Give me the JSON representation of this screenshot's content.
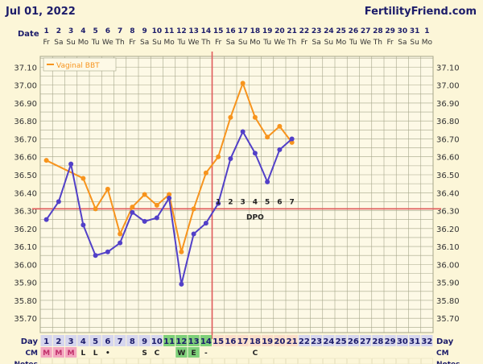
{
  "header": {
    "date": "Jul 01, 2022",
    "brand": "FertilityFriend.com"
  },
  "row_labels": {
    "date": "Date",
    "day": "Day",
    "cm": "CM",
    "notes": "Notes"
  },
  "dpo_label": "DPO",
  "colors": {
    "background": "#fcf6d8",
    "grid": "#a6a68a",
    "bbt_line": "#f7941d",
    "second_line": "#5240c8",
    "coverline": "#e05a5a",
    "ovulation_line": "#e05a5a",
    "text": "#1c1c6a",
    "period_cell": "#f4a7c0",
    "fertile_cell": "#7fd07a",
    "luteal_cell": "#f9dcc8",
    "day_cell": "#d6d6ee"
  },
  "chart_data": {
    "type": "line",
    "title": "",
    "legend": {
      "entries": [
        "Vaginal BBT"
      ],
      "placement": "top-left"
    },
    "dates": [
      "1",
      "2",
      "3",
      "4",
      "5",
      "6",
      "7",
      "8",
      "9",
      "10",
      "11",
      "12",
      "13",
      "14",
      "15",
      "16",
      "17",
      "18",
      "19",
      "20",
      "21",
      "22",
      "23",
      "24",
      "25",
      "26",
      "27",
      "28",
      "29",
      "30",
      "31",
      "1"
    ],
    "weekdays": [
      "Fr",
      "Sa",
      "Su",
      "Mo",
      "Tu",
      "We",
      "Th",
      "Fr",
      "Sa",
      "Su",
      "Mo",
      "Tu",
      "We",
      "Th",
      "Fr",
      "Sa",
      "Su",
      "Mo",
      "Tu",
      "We",
      "Th",
      "Fr",
      "Sa",
      "Su",
      "Mo",
      "Tu",
      "We",
      "Th",
      "Fr",
      "Sa",
      "Su",
      "Mo"
    ],
    "days": [
      "1",
      "2",
      "3",
      "4",
      "5",
      "6",
      "7",
      "8",
      "9",
      "10",
      "11",
      "12",
      "13",
      "14",
      "15",
      "16",
      "17",
      "18",
      "19",
      "20",
      "21",
      "22",
      "23",
      "24",
      "25",
      "26",
      "27",
      "28",
      "29",
      "30",
      "31",
      "32"
    ],
    "cm": [
      "M",
      "M",
      "M",
      "L",
      "L",
      "•",
      "",
      "",
      "S",
      "C",
      "",
      "W",
      "E",
      "-",
      "",
      "",
      "",
      "C",
      "",
      "",
      "",
      "",
      "",
      "",
      "",
      "",
      "",
      "",
      "",
      "",
      "",
      ""
    ],
    "y_ticks": [
      "37.10",
      "37.00",
      "36.90",
      "36.80",
      "36.70",
      "36.60",
      "36.50",
      "36.40",
      "36.30",
      "36.20",
      "36.10",
      "36.00",
      "35.90",
      "35.80",
      "35.70"
    ],
    "ylim": [
      35.62,
      37.16
    ],
    "grid": true,
    "coverline": 36.31,
    "ovulation_day": 14,
    "dpo_numbers": [
      "1",
      "2",
      "3",
      "4",
      "5",
      "6",
      "7"
    ],
    "series": [
      {
        "name": "Vaginal BBT",
        "x": [
          1,
          4,
          5,
          6,
          7,
          8,
          9,
          10,
          11,
          12,
          13,
          14,
          15,
          16,
          17,
          18,
          19,
          20,
          21
        ],
        "values": [
          36.58,
          36.48,
          36.31,
          36.42,
          36.17,
          36.32,
          36.39,
          36.33,
          36.39,
          36.07,
          36.31,
          36.51,
          36.6,
          36.82,
          37.01,
          36.82,
          36.71,
          36.77,
          36.68
        ]
      },
      {
        "name": "",
        "x": [
          1,
          2,
          3,
          4,
          5,
          6,
          7,
          8,
          9,
          10,
          11,
          12,
          13,
          14,
          15,
          16,
          17,
          18,
          19,
          20,
          21
        ],
        "values": [
          36.25,
          36.35,
          36.56,
          36.22,
          36.05,
          36.07,
          36.12,
          36.29,
          36.24,
          36.26,
          36.37,
          35.89,
          36.17,
          36.23,
          36.34,
          36.59,
          36.74,
          36.62,
          36.46,
          36.64,
          36.7
        ]
      }
    ]
  }
}
